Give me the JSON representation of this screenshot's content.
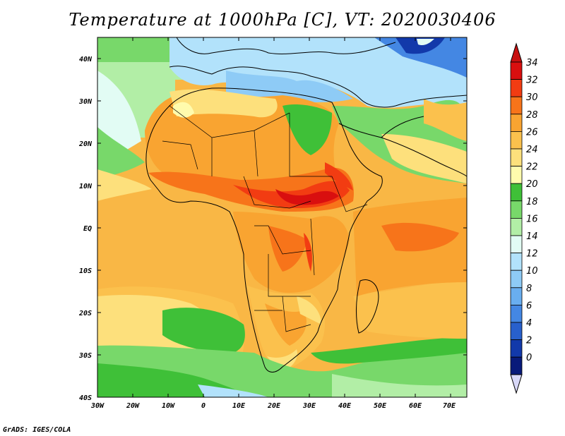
{
  "title": "Temperature at 1000hPa [C], VT: 2020030406",
  "credit": "GrADS: IGES/COLA",
  "map": {
    "lon_labels": [
      "30W",
      "20W",
      "10W",
      "0",
      "10E",
      "20E",
      "30E",
      "40E",
      "50E",
      "60E",
      "70E"
    ],
    "lat_labels": [
      "40N",
      "30N",
      "20N",
      "10N",
      "EQ",
      "10S",
      "20S",
      "30S",
      "40S"
    ],
    "extent": {
      "lon_min": -30,
      "lon_max": 75,
      "lat_min": -40,
      "lat_max": 45
    }
  },
  "colorbar": {
    "labels": [
      "34",
      "32",
      "30",
      "28",
      "26",
      "24",
      "22",
      "20",
      "18",
      "16",
      "14",
      "12",
      "10",
      "8",
      "6",
      "4",
      "2",
      "0"
    ],
    "colors": [
      "#d90f0f",
      "#f23c12",
      "#f7741a",
      "#f9a431",
      "#fbc14d",
      "#fde07c",
      "#fffbad",
      "#3fc038",
      "#78d86a",
      "#b2eea6",
      "#e2fcf4",
      "#b2e2fb",
      "#8ecbf6",
      "#69aef0",
      "#4487e3",
      "#2860cc",
      "#1239aa",
      "#081a7a"
    ],
    "below_color": "#d8d8f8",
    "above_color": "#c81010"
  }
}
